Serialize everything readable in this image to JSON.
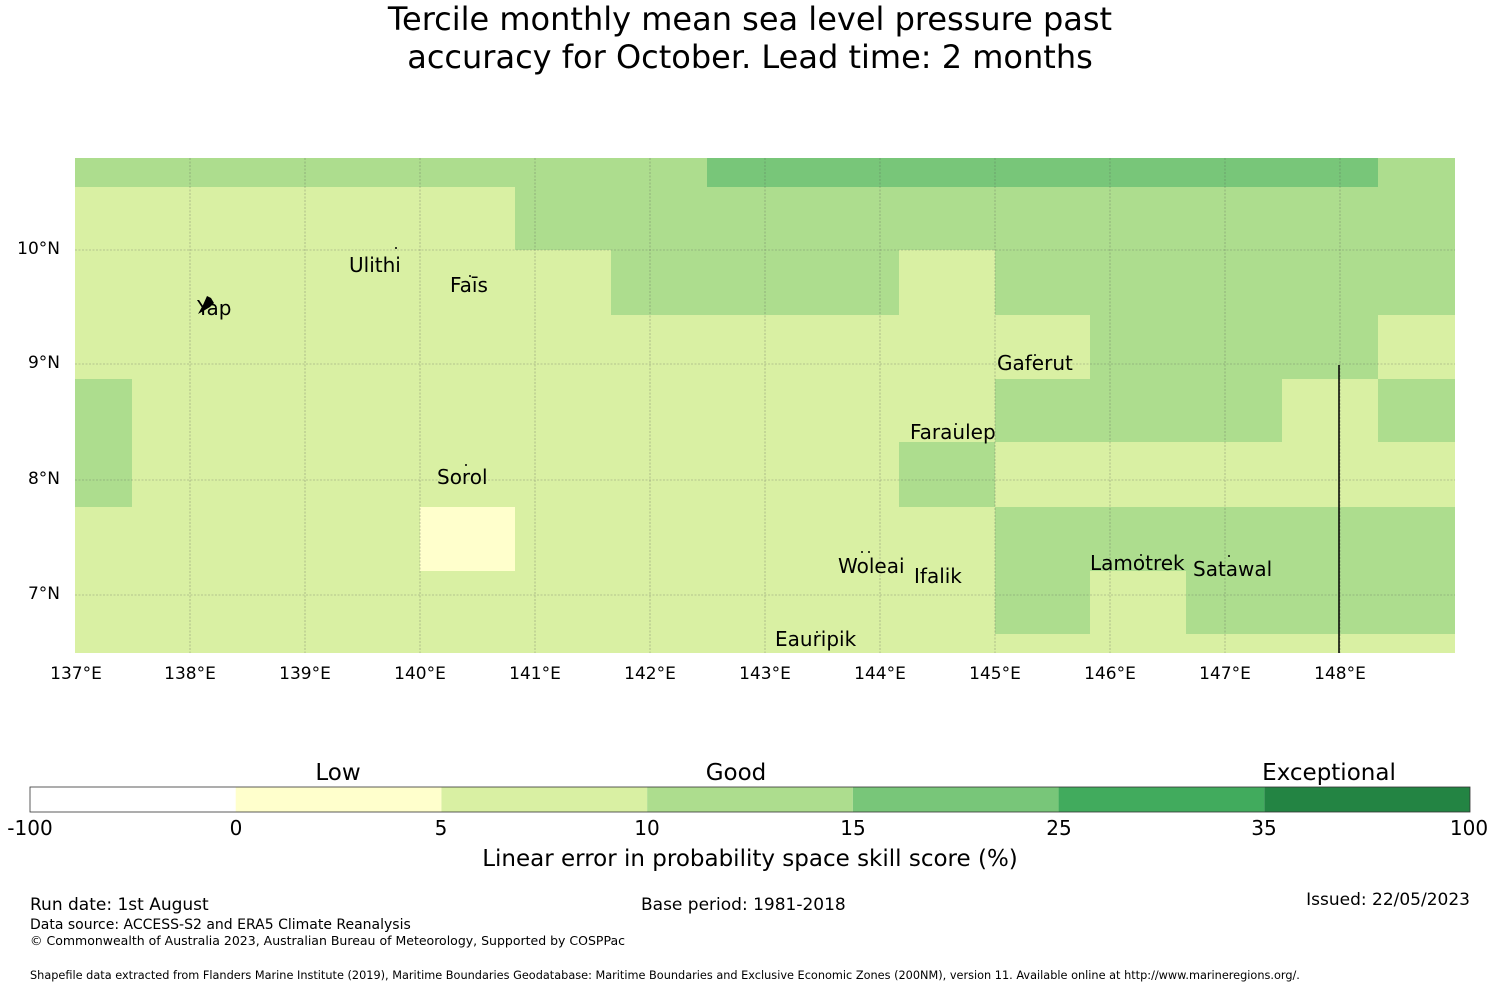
{
  "title": {
    "line1": "Tercile monthly mean sea level pressure past",
    "line2": "accuracy for October. Lead time: 2 months"
  },
  "map": {
    "lat_ticks": [
      "10°N",
      "9°N",
      "8°N",
      "7°N"
    ],
    "lon_ticks": [
      "137°E",
      "138°E",
      "139°E",
      "140°E",
      "141°E",
      "142°E",
      "143°E",
      "144°E",
      "145°E",
      "146°E",
      "147°E",
      "148°E"
    ],
    "places": [
      {
        "name": "Yap",
        "lon": 138.1,
        "lat": 9.5
      },
      {
        "name": "Ulithi",
        "lon": 139.7,
        "lat": 10.0
      },
      {
        "name": "Faīs",
        "lon": 140.5,
        "lat": 9.75
      },
      {
        "name": "Gaferut",
        "lon": 146.3,
        "lat": 9.2
      },
      {
        "name": "Faraulep",
        "lon": 144.6,
        "lat": 8.58
      },
      {
        "name": "Sorol",
        "lon": 140.4,
        "lat": 8.13
      },
      {
        "name": "Woleai",
        "lon": 143.9,
        "lat": 7.37
      },
      {
        "name": "Ifalik",
        "lon": 144.45,
        "lat": 7.25
      },
      {
        "name": "Lamotrek",
        "lon": 146.4,
        "lat": 7.4
      },
      {
        "name": "Satawal",
        "lon": 147.0,
        "lat": 7.35
      },
      {
        "name": "Eauripik",
        "lon": 143.05,
        "lat": 6.7
      }
    ],
    "colors": {
      "c1": "#ffffcc",
      "c2": "#d9f0a3",
      "c3": "#addd8e",
      "c4": "#78c679",
      "c5": "#41ab5d",
      "c6": "#238443"
    }
  },
  "colorbar": {
    "categories": [
      "Low",
      "Good",
      "Exceptional"
    ],
    "ticks": [
      "-100",
      "0",
      "5",
      "10",
      "15",
      "25",
      "35",
      "100"
    ],
    "colors": [
      "#ffffff",
      "#ffffcc",
      "#d9f0a3",
      "#addd8e",
      "#78c679",
      "#41ab5d",
      "#238443"
    ],
    "label": "Linear error in probability space skill score (%)"
  },
  "footer": {
    "run_date": "Run date: 1st August",
    "base_period": "Base period: 1981-2018",
    "issued": "Issued: 22/05/2023",
    "data_source": "Data source: ACCESS-S2 and ERA5 Climate Reanalysis",
    "copyright": "© Commonwealth of Australia 2023, Australian Bureau of Meteorology, Supported by COSPPac",
    "shapefile": "Shapefile data extracted from Flanders Marine Institute (2019), Maritime Boundaries Geodatabase: Maritime Boundaries and Exclusive Economic Zones (200NM), version 11. Available online at http://www.marineregions.org/."
  }
}
